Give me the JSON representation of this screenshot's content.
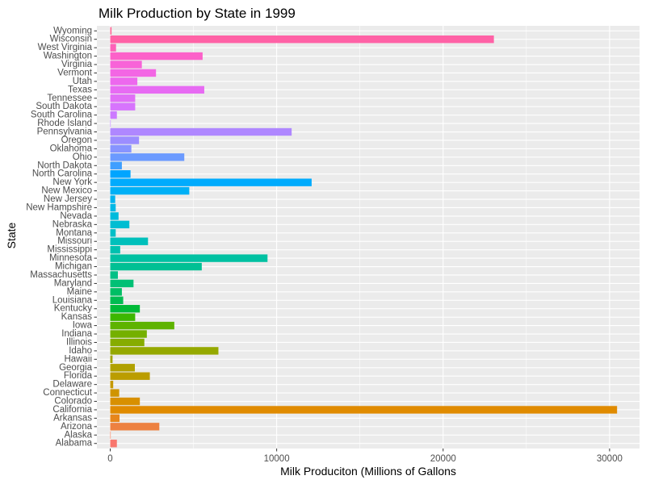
{
  "chart_data": {
    "type": "bar",
    "orientation": "horizontal",
    "title": "Milk Production by State in 1999",
    "xlabel": "Milk Produciton (Millions of Gallons",
    "ylabel": "State",
    "xlim": [
      -800,
      31800
    ],
    "xticks": [
      0,
      10000,
      20000,
      30000
    ],
    "xtick_labels": [
      "0",
      "10000",
      "20000",
      "30000"
    ],
    "grid": true,
    "legend": "none",
    "categories": [
      "Alabama",
      "Alaska",
      "Arizona",
      "Arkansas",
      "California",
      "Colorado",
      "Connecticut",
      "Delaware",
      "Florida",
      "Georgia",
      "Hawaii",
      "Idaho",
      "Illinois",
      "Indiana",
      "Iowa",
      "Kansas",
      "Kentucky",
      "Louisiana",
      "Maine",
      "Maryland",
      "Massachusetts",
      "Michigan",
      "Minnesota",
      "Mississippi",
      "Missouri",
      "Montana",
      "Nebraska",
      "Nevada",
      "New Hampshire",
      "New Jersey",
      "New Mexico",
      "New York",
      "North Carolina",
      "North Dakota",
      "Ohio",
      "Oklahoma",
      "Oregon",
      "Pennsylvania",
      "Rhode Island",
      "South Carolina",
      "South Dakota",
      "Tennessee",
      "Texas",
      "Utah",
      "Vermont",
      "Virginia",
      "Washington",
      "West Virginia",
      "Wisconsin",
      "Wyoming"
    ],
    "values": [
      400,
      30,
      2950,
      560,
      30450,
      1780,
      540,
      180,
      2380,
      1480,
      140,
      6500,
      2050,
      2200,
      3850,
      1500,
      1780,
      780,
      700,
      1400,
      460,
      5500,
      9450,
      600,
      2270,
      330,
      1150,
      500,
      330,
      300,
      4750,
      12100,
      1220,
      700,
      4450,
      1270,
      1730,
      10900,
      30,
      400,
      1500,
      1500,
      5650,
      1630,
      2750,
      1900,
      5550,
      350,
      23050,
      80
    ],
    "colors": [
      "#F8766D",
      "#F37B59",
      "#ED8141",
      "#E7861B",
      "#E08B00",
      "#D89000",
      "#CF9400",
      "#C59900",
      "#BB9D00",
      "#B0A100",
      "#A3A500",
      "#95A900",
      "#86AC00",
      "#74B000",
      "#5EB300",
      "#3DB700",
      "#00BA38",
      "#00BC51",
      "#00BE64",
      "#00C075",
      "#00C085",
      "#00C094",
      "#00C1A2",
      "#00C1AF",
      "#00C0BB",
      "#00BFC7",
      "#00BDD2",
      "#00BBDC",
      "#00B8E5",
      "#00B4EF",
      "#00B0F6",
      "#00ABFD",
      "#00A5FF",
      "#3F9FFF",
      "#6B9AFF",
      "#8794FF",
      "#9C8DFF",
      "#AF87FF",
      "#BF80FF",
      "#CC7AFF",
      "#D774FD",
      "#E06FF6",
      "#E76BF3",
      "#ED68EE",
      "#F366E4",
      "#F863D8",
      "#FC61C9",
      "#FE61B8",
      "#FF62A6",
      "#FF6493"
    ]
  }
}
